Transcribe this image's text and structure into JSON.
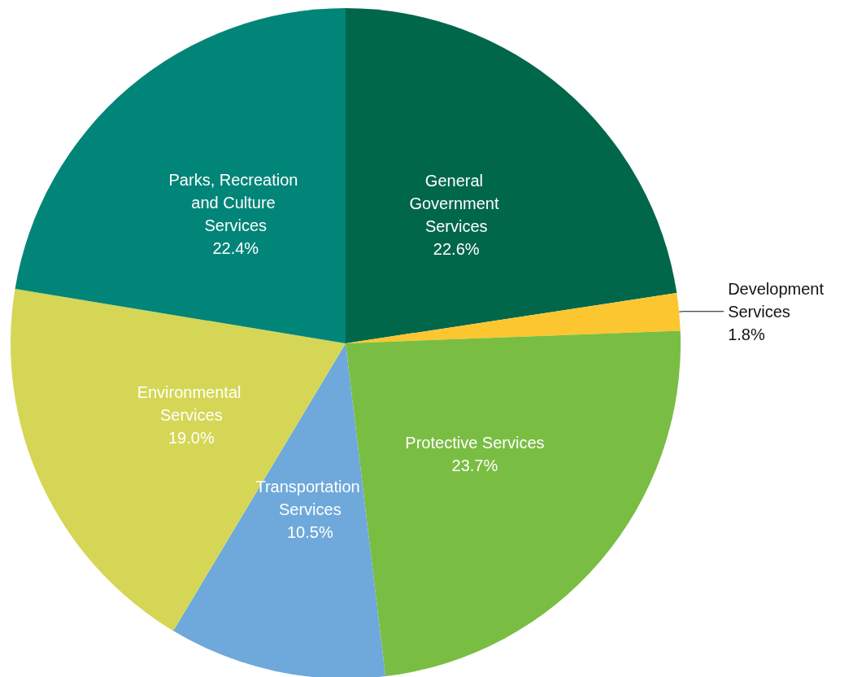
{
  "chart_data": {
    "type": "pie",
    "categories": [
      "General Government Services",
      "Development Services",
      "Protective Services",
      "Transportation Services",
      "Environmental Services",
      "Parks, Recreation and Culture Services"
    ],
    "values": [
      22.6,
      1.8,
      23.7,
      10.5,
      19.0,
      22.4
    ],
    "value_labels": [
      "22.6%",
      "1.8%",
      "23.7%",
      "10.5%",
      "19.0%",
      "22.4%"
    ],
    "colors": [
      "#00674b",
      "#fcc630",
      "#7abd43",
      "#6fa9db",
      "#d5d655",
      "#008578"
    ]
  }
}
